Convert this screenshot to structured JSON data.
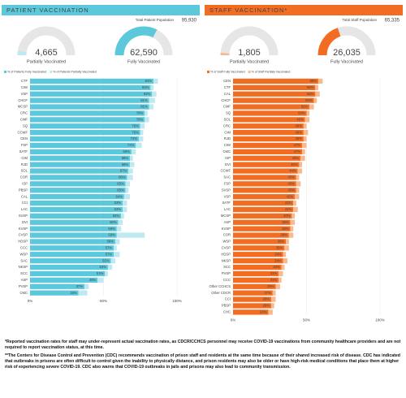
{
  "chart_data": [
    {
      "type": "bar",
      "orientation": "horizontal",
      "title": "PATIENT VACCINATION",
      "header_color": "#5bc8dc",
      "total": {
        "label": "Total Patient Population",
        "value": 95930,
        "value_label": "95,930"
      },
      "gauges": [
        {
          "name": "Partially Vaccinated",
          "value": 4665,
          "value_label": "4,665",
          "color": "#bfe9f1"
        },
        {
          "name": "Fully Vaccinated",
          "value": 62590,
          "value_label": "62,590",
          "color": "#5bc8dc"
        }
      ],
      "categories": [
        "CTF",
        "CIW",
        "VSP",
        "CHCF",
        "MCSP",
        "CRC",
        "CMF",
        "SQ",
        "CCWF",
        "CEN",
        "FSP",
        "SATF",
        "CIM",
        "RJD",
        "SOL",
        "COR",
        "ISP",
        "PBSP",
        "CAL",
        "CCI",
        "LAC",
        "SVSP",
        "DVI",
        "KVSP",
        "CVSP",
        "HDSP",
        "CCC",
        "WSP",
        "SAC",
        "NKSP",
        "SCC",
        "ASP",
        "PVSP",
        "CMC"
      ],
      "series": [
        {
          "name": "% of Patients Fully Vaccinated",
          "color": "#5bc8dc",
          "values": [
            84,
            82,
            83,
            81,
            81,
            78,
            78,
            75,
            75,
            74,
            72,
            69,
            68,
            68,
            67,
            66,
            65,
            65,
            64,
            63,
            63,
            62,
            60,
            59,
            59,
            58,
            57,
            57,
            55,
            53,
            51,
            46,
            37,
            33
          ],
          "value_labels": [
            "84%",
            "82%",
            "83%",
            "81%",
            "81%",
            "78%",
            "78%",
            "75%",
            "75%",
            "74%",
            "72%",
            "69%",
            "68%",
            "68%",
            "67%",
            "66%",
            "65%",
            "65%",
            "64%",
            "63%",
            "63%",
            "62%",
            "60%",
            "59%",
            "59%",
            "58%",
            "57%",
            "57%",
            "55%",
            "53%",
            "51%",
            "46%",
            "37%",
            "33%"
          ]
        },
        {
          "name": "% of Patients Partially Vaccinated",
          "color": "#bfe9f1",
          "values": [
            3,
            2,
            3,
            4,
            3,
            2,
            3,
            3,
            2,
            3,
            4,
            3,
            2,
            3,
            3,
            4,
            3,
            2,
            4,
            3,
            3,
            2,
            3,
            3,
            19,
            3,
            2,
            4,
            3,
            3,
            2,
            4,
            3,
            6
          ]
        }
      ],
      "xlim": [
        0,
        100
      ],
      "xticks": [
        {
          "value": 0,
          "label": "0%"
        },
        {
          "value": 50,
          "label": "50%"
        },
        {
          "value": 100,
          "label": "100%"
        }
      ]
    },
    {
      "type": "bar",
      "orientation": "horizontal",
      "title": "STAFF VACCINATION*",
      "header_color": "#f26c21",
      "total": {
        "label": "Total Staff Population",
        "value": 65335,
        "value_label": "65,335"
      },
      "gauges": [
        {
          "name": "Partially Vaccinated",
          "value": 1805,
          "value_label": "1,805",
          "color": "#f9b98f"
        },
        {
          "name": "Fully Vaccinated",
          "value": 26035,
          "value_label": "26,035",
          "color": "#f26c21"
        }
      ],
      "categories": [
        "CEN",
        "CTF",
        "CAL",
        "CHCF",
        "CMF",
        "SQ",
        "SOL",
        "CRC",
        "CIM",
        "RJD",
        "CIW",
        "CMC",
        "ISP",
        "DVI",
        "CCWF",
        "SAC",
        "FSP",
        "SVSP",
        "VSP",
        "SATF",
        "LAC",
        "MCSP",
        "ASP",
        "KVSP",
        "COR",
        "WSP",
        "CVSP",
        "HDSP",
        "NKSP",
        "SCC",
        "PVSP",
        "CCC",
        "Other CCHCS",
        "Other CDCR",
        "CCI",
        "PBSP",
        "CHC"
      ],
      "series": [
        {
          "name": "% of Staff Fully Vaccinated",
          "color": "#f26c21",
          "values": [
            58,
            56,
            56,
            55,
            52,
            50,
            49,
            48,
            48,
            48,
            47,
            47,
            46,
            45,
            44,
            43,
            43,
            43,
            42,
            41,
            41,
            40,
            39,
            39,
            38,
            36,
            35,
            34,
            34,
            33,
            31,
            31,
            29,
            27,
            26,
            26,
            24
          ],
          "value_labels": [
            "58%",
            "56%",
            "56%",
            "55%",
            "52%",
            "50%",
            "49%",
            "48%",
            "48%",
            "48%",
            "47%",
            "47%",
            "46%",
            "45%",
            "44%",
            "43%",
            "43%",
            "43%",
            "42%",
            "41%",
            "41%",
            "40%",
            "39%",
            "39%",
            "38%",
            "36%",
            "35%",
            "34%",
            "34%",
            "33%",
            "31%",
            "31%",
            "29%",
            "27%",
            "26%",
            "26%",
            "24%"
          ]
        },
        {
          "name": "% of Staff Partially Vaccinated",
          "color": "#f9b98f",
          "values": [
            3,
            2,
            3,
            2,
            3,
            2,
            3,
            2,
            3,
            2,
            3,
            2,
            3,
            2,
            3,
            2,
            3,
            2,
            3,
            2,
            3,
            2,
            3,
            2,
            3,
            2,
            3,
            2,
            3,
            2,
            3,
            2,
            3,
            2,
            3,
            2,
            3
          ]
        }
      ],
      "xlim": [
        0,
        100
      ],
      "xticks": [
        {
          "value": 0,
          "label": "0%"
        },
        {
          "value": 50,
          "label": "50%"
        },
        {
          "value": 100,
          "label": "100%"
        }
      ]
    }
  ],
  "footnotes": [
    "*Reported vaccination rates for staff may under-represent actual vaccination rates, as CDCR/CCHCS personnel may receive COVID-19 vaccinations from community healthcare providers and are not required to report vaccination status, at this time.",
    "**The Centers for Disease Control and Prevention (CDC) recommends vaccination of prison staff and residents at the same time because of their shared increased risk of disease. CDC has indicated that outbreaks in prisons are often difficult to control given the inability to physically distance, and prison residents may also be older or have high-risk medical conditions that place them at higher risk of experiencing severe COVID-19. CDC also warns that COVID-19 outbreaks in jails and prisons may also lead to community transmission."
  ]
}
